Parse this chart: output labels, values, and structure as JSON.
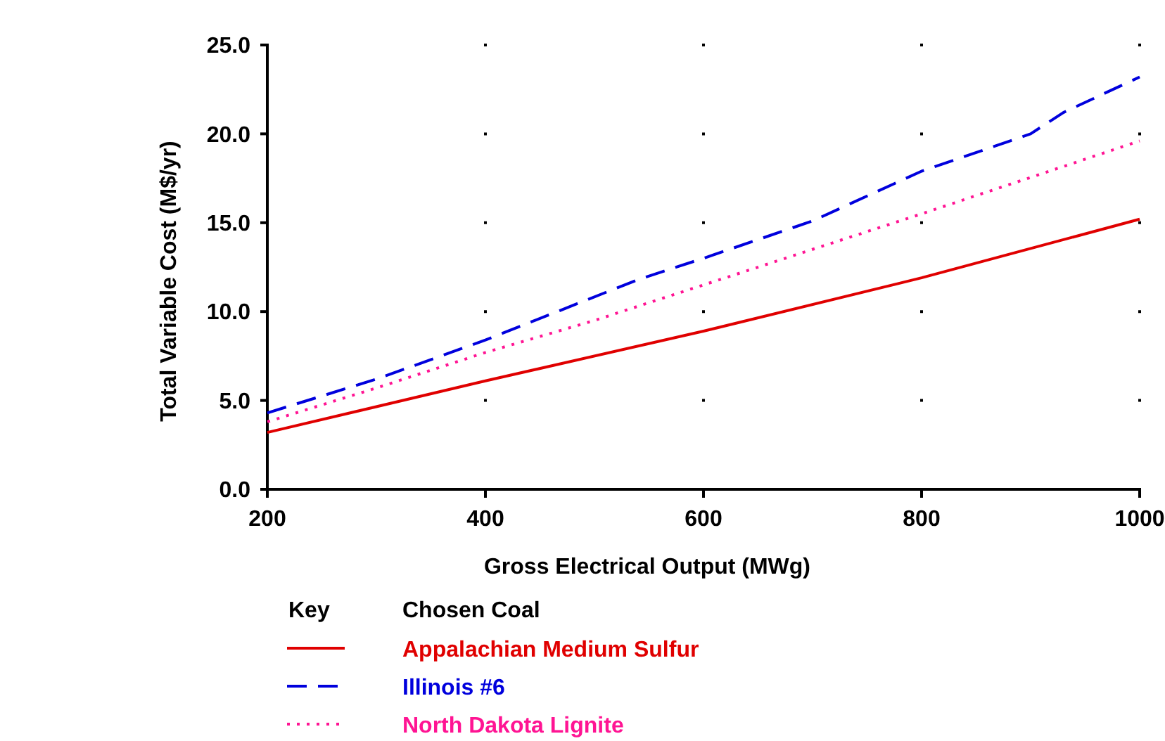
{
  "chart_data": {
    "type": "line",
    "xlabel": "Gross Electrical Output (MWg)",
    "ylabel": "Total Variable Cost (M$/yr)",
    "legend_title": "Key     Chosen Coal",
    "legend": "bottom left",
    "grid": true,
    "xlim": [
      200,
      1000
    ],
    "xticks": [
      200,
      400,
      600,
      800,
      1000
    ],
    "ylim": [
      0,
      25
    ],
    "yticks": [
      {
        "value": 0,
        "label": "0.0"
      },
      {
        "value": 5,
        "label": "5.0"
      },
      {
        "value": 10,
        "label": "10.0"
      },
      {
        "value": 15,
        "label": "15.0"
      },
      {
        "value": 20,
        "label": "20.0"
      },
      {
        "value": 25,
        "label": "25.0"
      }
    ],
    "series": [
      {
        "name": "Appalachian Medium Sulfur",
        "color": "#e00000",
        "line_style": "solid",
        "x": [
          200,
          400,
          600,
          800,
          1000
        ],
        "values": [
          3.2,
          6.1,
          8.9,
          11.9,
          15.2
        ]
      },
      {
        "name": "Illinois #6",
        "color": "#0000dd",
        "line_style": "dashed",
        "x": [
          200,
          300,
          400,
          540,
          600,
          700,
          800,
          900,
          930,
          1000
        ],
        "values": [
          4.3,
          6.2,
          8.4,
          11.8,
          13.0,
          15.1,
          17.9,
          20.0,
          21.2,
          23.2
        ]
      },
      {
        "name": "North Dakota Lignite",
        "color": "#ff1493",
        "line_style": "dotted",
        "x": [
          200,
          300,
          400,
          500,
          600,
          800,
          1000
        ],
        "values": [
          3.8,
          5.7,
          7.7,
          9.5,
          11.5,
          15.5,
          19.6
        ]
      }
    ]
  }
}
